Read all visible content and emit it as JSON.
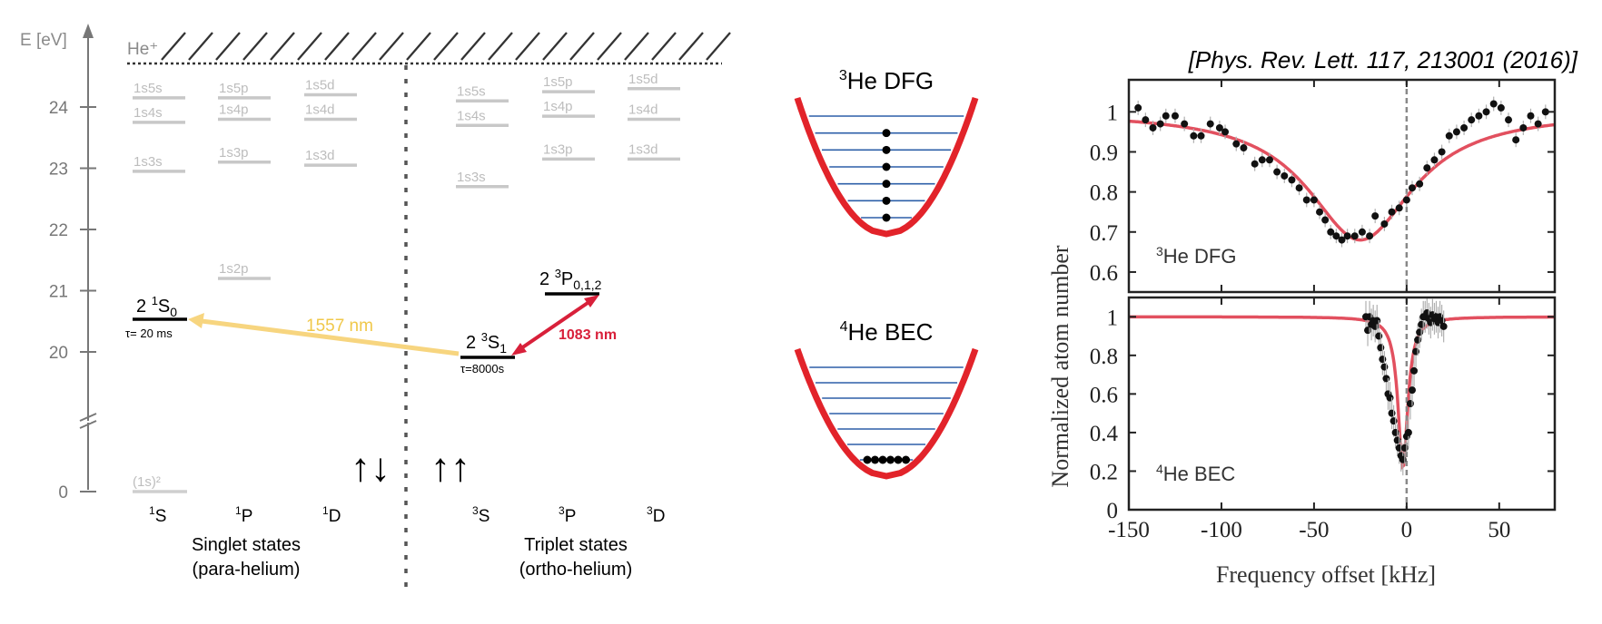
{
  "energy_diagram": {
    "axis": {
      "label": "E [eV]",
      "ticks": [
        {
          "value": 24,
          "label": "24"
        },
        {
          "value": 23,
          "label": "23"
        },
        {
          "value": 22,
          "label": "22"
        },
        {
          "value": 21,
          "label": "21"
        },
        {
          "value": 20,
          "label": "20"
        },
        {
          "value": 0,
          "label": "0"
        }
      ]
    },
    "ionization_label": "He⁺",
    "gray_levels": [
      {
        "label": "1s5s",
        "col": "S",
        "side": "singlet",
        "energy": 24.15
      },
      {
        "label": "1s4s",
        "col": "S",
        "side": "singlet",
        "energy": 23.75
      },
      {
        "label": "1s3s",
        "col": "S",
        "side": "singlet",
        "energy": 22.95
      },
      {
        "label": "1s5p",
        "col": "P",
        "side": "singlet",
        "energy": 24.15
      },
      {
        "label": "1s4p",
        "col": "P",
        "side": "singlet",
        "energy": 23.8
      },
      {
        "label": "1s3p",
        "col": "P",
        "side": "singlet",
        "energy": 23.1
      },
      {
        "label": "1s2p",
        "col": "P",
        "side": "singlet",
        "energy": 21.2
      },
      {
        "label": "1s5d",
        "col": "D",
        "side": "singlet",
        "energy": 24.2
      },
      {
        "label": "1s4d",
        "col": "D",
        "side": "singlet",
        "energy": 23.8
      },
      {
        "label": "1s3d",
        "col": "D",
        "side": "singlet",
        "energy": 23.05
      },
      {
        "label": "1s5s",
        "col": "S",
        "side": "triplet",
        "energy": 24.1
      },
      {
        "label": "1s4s",
        "col": "S",
        "side": "triplet",
        "energy": 23.7
      },
      {
        "label": "1s3s",
        "col": "S",
        "side": "triplet",
        "energy": 22.7
      },
      {
        "label": "1s5p",
        "col": "P",
        "side": "triplet",
        "energy": 24.25
      },
      {
        "label": "1s4p",
        "col": "P",
        "side": "triplet",
        "energy": 23.85
      },
      {
        "label": "1s3p",
        "col": "P",
        "side": "triplet",
        "energy": 23.15
      },
      {
        "label": "1s5d",
        "col": "D",
        "side": "triplet",
        "energy": 24.3
      },
      {
        "label": "1s4d",
        "col": "D",
        "side": "triplet",
        "energy": 23.8
      },
      {
        "label": "1s3d",
        "col": "D",
        "side": "triplet",
        "energy": 23.15
      }
    ],
    "ground_level": {
      "label": "(1s)²",
      "energy": 0
    },
    "singlet_2S": {
      "prefix": "2 ",
      "sup": "1",
      "main": "S",
      "sub": "0",
      "lifetime": "τ= 20 ms"
    },
    "triplet_2S": {
      "prefix": "2 ",
      "sup": "3",
      "main": "S",
      "sub": "1",
      "lifetime": "τ=8000s"
    },
    "triplet_2P": {
      "prefix": "2 ",
      "sup": "3",
      "main": "P",
      "sub": "0,1,2"
    },
    "transitions": [
      {
        "label": "1557 nm",
        "color": "#f7d57f"
      },
      {
        "label": "1083 nm",
        "color": "#d8203a"
      }
    ],
    "columns": {
      "singlet": [
        {
          "sup": "1",
          "main": "S"
        },
        {
          "sup": "1",
          "main": "P"
        },
        {
          "sup": "1",
          "main": "D"
        }
      ],
      "triplet": [
        {
          "sup": "3",
          "main": "S"
        },
        {
          "sup": "3",
          "main": "P"
        },
        {
          "sup": "3",
          "main": "D"
        }
      ]
    },
    "spin_symbols": {
      "singlet": "↑↓",
      "triplet": "↑↑"
    },
    "groups": {
      "singlet_line1": "Singlet states",
      "singlet_line2": "(para-helium)",
      "triplet_line1": "Triplet states",
      "triplet_line2": "(ortho-helium)"
    },
    "colors": {
      "gray": "#bdbdbd",
      "axis": "#777777"
    }
  },
  "traps": [
    {
      "sup": "3",
      "label": "He DFG",
      "levels": 7,
      "filled_levels": 6,
      "ground_atoms": 1
    },
    {
      "sup": "4",
      "label": "He BEC",
      "levels": 7,
      "filled_levels": 0,
      "ground_atoms": 6
    }
  ],
  "trap_colors": {
    "potential": "#e2232a",
    "levels": "#2d5fa8",
    "atoms": "#000000"
  },
  "citation": "[Phys. Rev. Lett. 117, 213001 (2016)]",
  "chart_data": [
    {
      "type": "scatter",
      "panel_label_sup": "3",
      "panel_label": "He DFG",
      "ylabel": "Normalized atom number",
      "xlabel": "Frequency offset [kHz]",
      "xlim": [
        -150,
        80
      ],
      "ylim": [
        0.55,
        1.08
      ],
      "x_ticks": [
        -150,
        -100,
        -50,
        0,
        50
      ],
      "y_ticks": [
        0.6,
        0.7,
        0.8,
        0.9,
        1
      ],
      "fit": {
        "model": "lorentzian",
        "center": -25,
        "depth": 0.32,
        "hwhm": 35,
        "color": "#e2505f"
      },
      "marker_line_x": 0,
      "points": [
        [
          -145,
          1.01
        ],
        [
          -141,
          0.98
        ],
        [
          -137,
          0.96
        ],
        [
          -133,
          0.97
        ],
        [
          -130,
          0.99
        ],
        [
          -125,
          0.99
        ],
        [
          -120,
          0.97
        ],
        [
          -115,
          0.94
        ],
        [
          -111,
          0.94
        ],
        [
          -106,
          0.97
        ],
        [
          -101,
          0.96
        ],
        [
          -98,
          0.95
        ],
        [
          -92,
          0.92
        ],
        [
          -88,
          0.91
        ],
        [
          -82,
          0.87
        ],
        [
          -78,
          0.88
        ],
        [
          -74,
          0.88
        ],
        [
          -70,
          0.85
        ],
        [
          -66,
          0.84
        ],
        [
          -62,
          0.83
        ],
        [
          -58,
          0.81
        ],
        [
          -54,
          0.78
        ],
        [
          -50,
          0.78
        ],
        [
          -47,
          0.75
        ],
        [
          -44,
          0.73
        ],
        [
          -41,
          0.7
        ],
        [
          -38,
          0.69
        ],
        [
          -35,
          0.68
        ],
        [
          -32,
          0.69
        ],
        [
          -28,
          0.69
        ],
        [
          -24,
          0.7
        ],
        [
          -20,
          0.69
        ],
        [
          -17,
          0.74
        ],
        [
          -12,
          0.72
        ],
        [
          -8,
          0.75
        ],
        [
          -4,
          0.76
        ],
        [
          0,
          0.78
        ],
        [
          3,
          0.81
        ],
        [
          7,
          0.82
        ],
        [
          11,
          0.86
        ],
        [
          15,
          0.88
        ],
        [
          19,
          0.9
        ],
        [
          23,
          0.94
        ],
        [
          27,
          0.95
        ],
        [
          31,
          0.96
        ],
        [
          35,
          0.98
        ],
        [
          39,
          0.99
        ],
        [
          43,
          1.0
        ],
        [
          47,
          1.02
        ],
        [
          51,
          1.01
        ],
        [
          55,
          0.98
        ],
        [
          59,
          0.93
        ],
        [
          63,
          0.96
        ],
        [
          67,
          0.99
        ],
        [
          71,
          0.97
        ],
        [
          75,
          1.0
        ]
      ]
    },
    {
      "type": "scatter",
      "panel_label_sup": "4",
      "panel_label": "He BEC",
      "ylabel": "Normalized atom number",
      "xlabel": "Frequency offset [kHz]",
      "xlim": [
        -150,
        80
      ],
      "ylim": [
        0,
        1.1
      ],
      "x_ticks": [
        -150,
        -100,
        -50,
        0,
        50
      ],
      "x_tick_labels": [
        "-150",
        "-100",
        "-50",
        "0",
        "50"
      ],
      "y_ticks": [
        0,
        0.2,
        0.4,
        0.6,
        0.8,
        1
      ],
      "y_tick_labels": [
        "0",
        "0.2",
        "0.4",
        "0.6",
        "0.8",
        "1"
      ],
      "fit": {
        "model": "lorentzian",
        "center": -2,
        "depth": 0.78,
        "hwhm": 3.2,
        "color": "#e2505f"
      },
      "marker_line_x": 0,
      "points": [
        [
          -22,
          1.0
        ],
        [
          -21,
          0.93
        ],
        [
          -20,
          1.0
        ],
        [
          -19,
          0.96
        ],
        [
          -18,
          0.98
        ],
        [
          -17,
          0.95
        ],
        [
          -16,
          0.98
        ],
        [
          -15,
          0.9
        ],
        [
          -14,
          0.84
        ],
        [
          -13,
          0.78
        ],
        [
          -12,
          0.74
        ],
        [
          -11,
          0.68
        ],
        [
          -10,
          0.6
        ],
        [
          -9,
          0.58
        ],
        [
          -8,
          0.5
        ],
        [
          -7,
          0.46
        ],
        [
          -6,
          0.4
        ],
        [
          -5,
          0.36
        ],
        [
          -4,
          0.32
        ],
        [
          -3,
          0.28
        ],
        [
          -2,
          0.26
        ],
        [
          -1,
          0.32
        ],
        [
          0,
          0.38
        ],
        [
          1,
          0.4
        ],
        [
          2,
          0.55
        ],
        [
          3,
          0.62
        ],
        [
          4,
          0.72
        ],
        [
          5,
          0.82
        ],
        [
          6,
          0.88
        ],
        [
          7,
          0.92
        ],
        [
          8,
          0.96
        ],
        [
          9,
          1.0
        ],
        [
          10,
          1.0
        ],
        [
          11,
          1.02
        ],
        [
          12,
          0.99
        ],
        [
          13,
          0.97
        ],
        [
          14,
          1.01
        ],
        [
          15,
          0.99
        ],
        [
          16,
          1.0
        ],
        [
          17,
          0.97
        ],
        [
          18,
          1.0
        ],
        [
          19,
          0.98
        ],
        [
          20,
          0.95
        ]
      ]
    }
  ]
}
